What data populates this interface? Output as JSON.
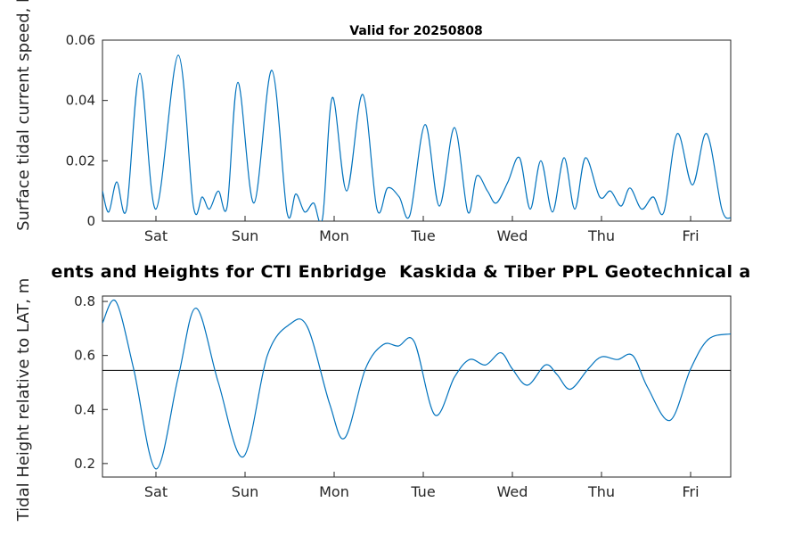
{
  "figure": {
    "suptitle": "ents and Heights for CTI Enbridge  Kaskida & Tiber PPL Geotechnical a",
    "colors": {
      "line": "#0072BD",
      "axis": "#262626",
      "ref_line": "#000000",
      "title": "#000000"
    }
  },
  "chart_data": [
    {
      "type": "line",
      "title": "Valid for 20250808",
      "ylabel": "Surface tidal current speed, kn",
      "xlabel": "",
      "grid": false,
      "xlim": [
        0,
        7.05
      ],
      "ylim": [
        0,
        0.06
      ],
      "y_ticks": [
        0,
        0.02,
        0.04,
        0.06
      ],
      "y_tick_labels": [
        "0",
        "0.02",
        "0.04",
        "0.06"
      ],
      "x_tick_positions": [
        0.6,
        1.6,
        2.6,
        3.6,
        4.6,
        5.6,
        6.6
      ],
      "x_tick_labels": [
        "Sat",
        "Sun",
        "Mon",
        "Tue",
        "Wed",
        "Thu",
        "Fri"
      ],
      "series": [
        {
          "name": "current_speed",
          "x": [
            0,
            0.07,
            0.16,
            0.27,
            0.42,
            0.6,
            0.85,
            1.02,
            1.12,
            1.2,
            1.3,
            1.4,
            1.52,
            1.7,
            1.9,
            2.07,
            2.17,
            2.27,
            2.37,
            2.47,
            2.58,
            2.74,
            2.92,
            3.08,
            3.2,
            3.33,
            3.45,
            3.62,
            3.78,
            3.95,
            4.1,
            4.2,
            4.32,
            4.42,
            4.55,
            4.68,
            4.8,
            4.92,
            5.05,
            5.18,
            5.3,
            5.42,
            5.58,
            5.7,
            5.82,
            5.92,
            6.05,
            6.18,
            6.3,
            6.45,
            6.62,
            6.78,
            6.95,
            7.05
          ],
          "y": [
            0.01,
            0.003,
            0.013,
            0.004,
            0.049,
            0.004,
            0.055,
            0.005,
            0.008,
            0.004,
            0.01,
            0.005,
            0.046,
            0.006,
            0.05,
            0.003,
            0.009,
            0.003,
            0.006,
            0.001,
            0.041,
            0.01,
            0.042,
            0.004,
            0.011,
            0.008,
            0.002,
            0.032,
            0.005,
            0.031,
            0.003,
            0.015,
            0.01,
            0.006,
            0.013,
            0.021,
            0.004,
            0.02,
            0.003,
            0.021,
            0.004,
            0.021,
            0.008,
            0.01,
            0.005,
            0.011,
            0.004,
            0.008,
            0.003,
            0.029,
            0.012,
            0.029,
            0.004,
            0.001
          ]
        }
      ]
    },
    {
      "type": "line",
      "title": "",
      "ylabel": "Tidal Height relative to LAT, m",
      "xlabel": "",
      "grid": false,
      "xlim": [
        0,
        7.05
      ],
      "ylim": [
        0.15,
        0.82
      ],
      "y_ticks": [
        0.2,
        0.4,
        0.6,
        0.8
      ],
      "y_tick_labels": [
        "0.2",
        "0.4",
        "0.6",
        "0.8"
      ],
      "x_tick_positions": [
        0.6,
        1.6,
        2.6,
        3.6,
        4.6,
        5.6,
        6.6
      ],
      "x_tick_labels": [
        "Sat",
        "Sun",
        "Mon",
        "Tue",
        "Wed",
        "Thu",
        "Fri"
      ],
      "ref_line_y": 0.545,
      "series": [
        {
          "name": "tidal_height",
          "x": [
            0,
            0.15,
            0.35,
            0.6,
            0.85,
            1.05,
            1.3,
            1.58,
            1.85,
            2.1,
            2.3,
            2.55,
            2.72,
            2.95,
            3.15,
            3.32,
            3.5,
            3.73,
            3.95,
            4.12,
            4.3,
            4.47,
            4.6,
            4.77,
            4.97,
            5.1,
            5.25,
            5.45,
            5.6,
            5.78,
            5.95,
            6.12,
            6.37,
            6.6,
            6.8,
            7.05
          ],
          "y": [
            0.72,
            0.8,
            0.55,
            0.18,
            0.52,
            0.775,
            0.5,
            0.225,
            0.6,
            0.715,
            0.705,
            0.42,
            0.295,
            0.55,
            0.64,
            0.635,
            0.65,
            0.38,
            0.52,
            0.585,
            0.565,
            0.61,
            0.55,
            0.49,
            0.565,
            0.53,
            0.475,
            0.55,
            0.595,
            0.585,
            0.6,
            0.48,
            0.36,
            0.55,
            0.66,
            0.68
          ]
        }
      ]
    }
  ]
}
